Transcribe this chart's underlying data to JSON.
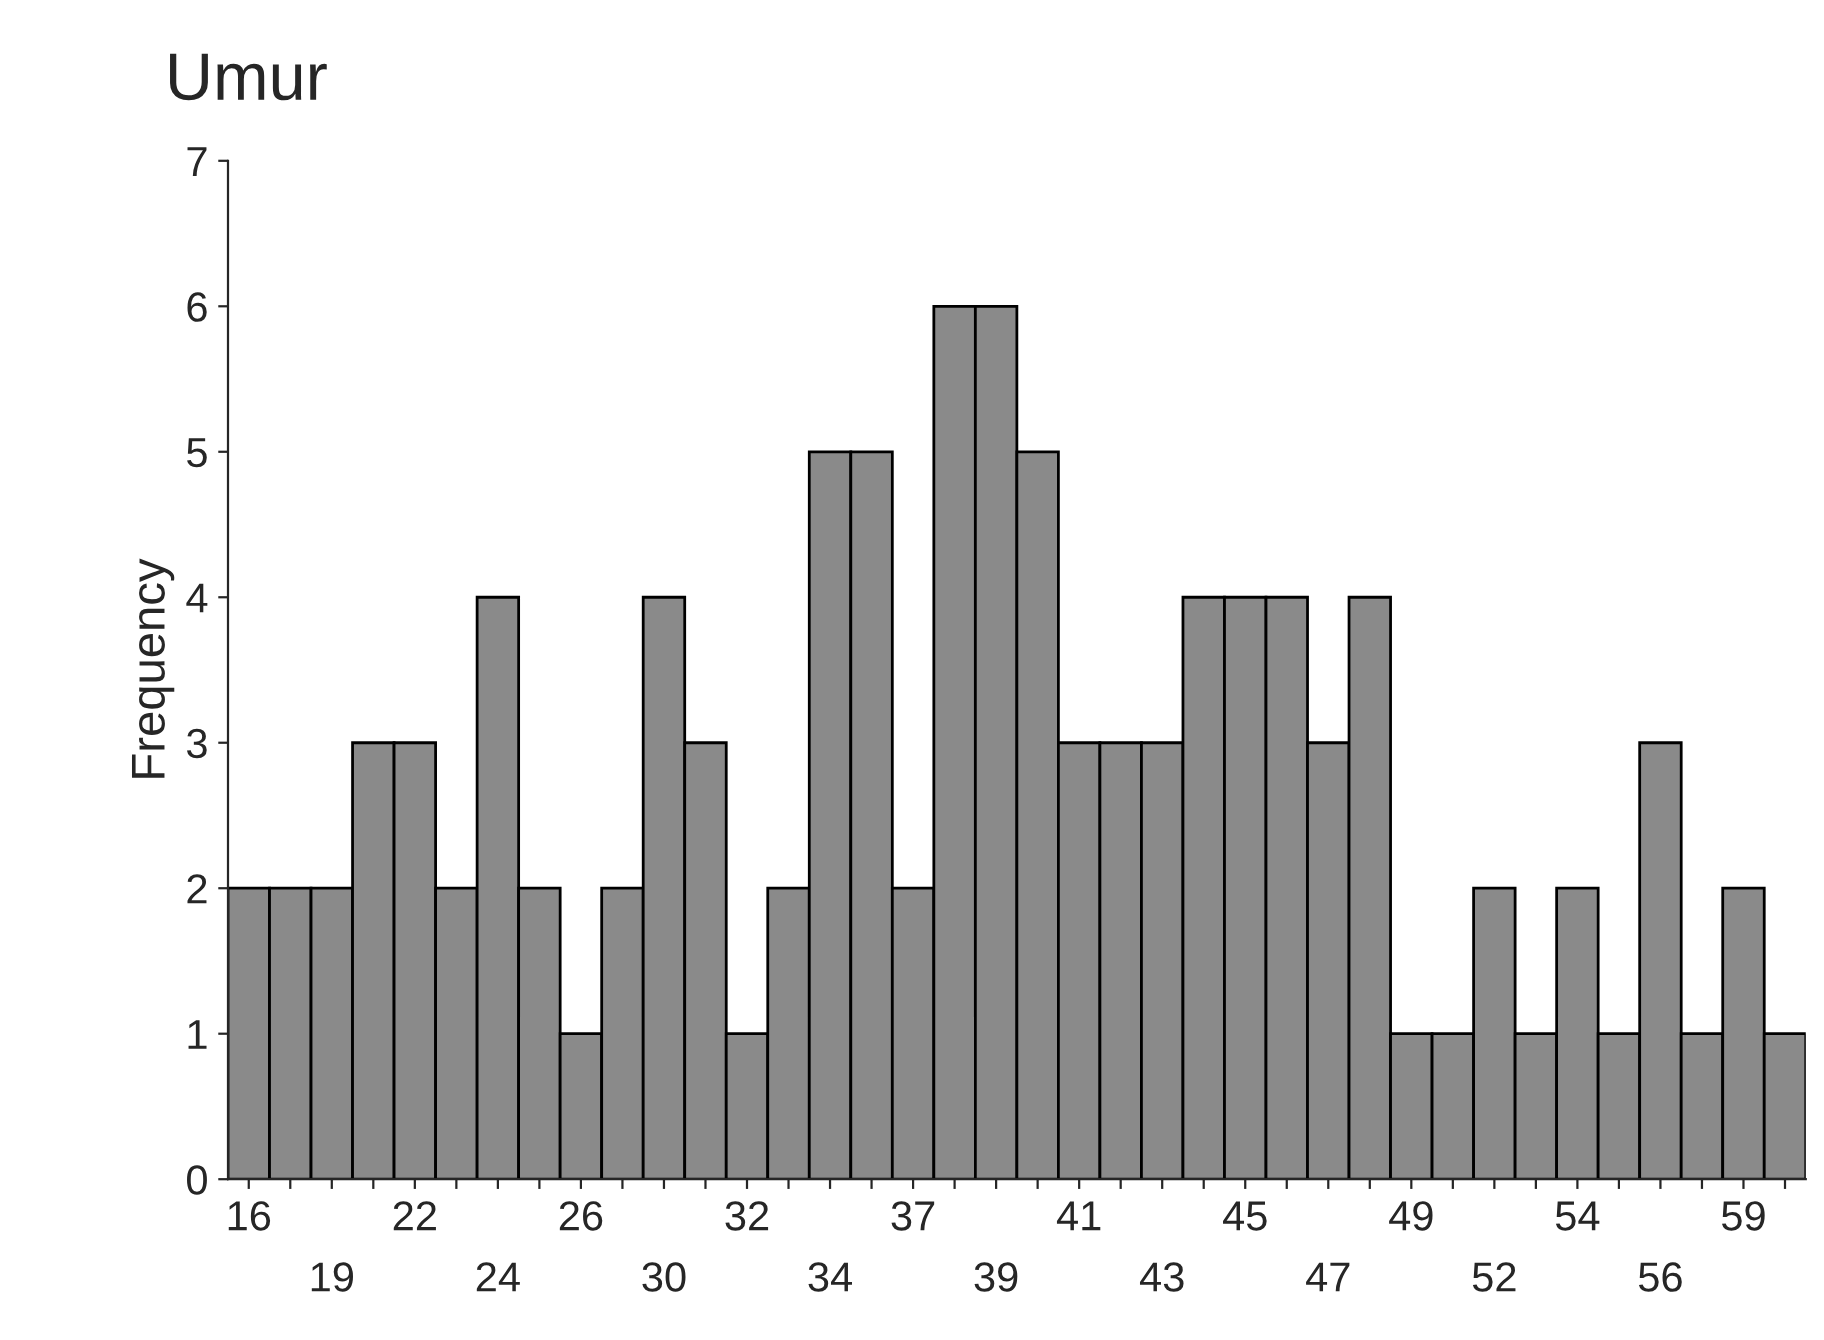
{
  "chart_data": {
    "type": "bar",
    "title": "Umur",
    "ylabel": "Frequency",
    "categories": [
      "16",
      null,
      "19",
      null,
      "22",
      null,
      "24",
      null,
      "26",
      null,
      "30",
      null,
      "32",
      null,
      "34",
      null,
      "37",
      null,
      "39",
      null,
      "41",
      null,
      "43",
      null,
      "45",
      null,
      "47",
      null,
      "49",
      null,
      "52",
      null,
      "54",
      null,
      "56",
      null,
      "59",
      null
    ],
    "values": [
      2,
      2,
      2,
      3,
      3,
      2,
      4,
      2,
      1,
      2,
      4,
      3,
      1,
      2,
      5,
      5,
      2,
      6,
      6,
      5,
      3,
      3,
      3,
      4,
      4,
      4,
      3,
      4,
      1,
      1,
      2,
      1,
      2,
      1,
      3,
      1,
      2,
      1
    ],
    "color": "#8a8a8a",
    "ylim": [
      0,
      7
    ],
    "yticks": [
      0,
      1,
      2,
      3,
      4,
      5,
      6,
      7
    ],
    "grid": false
  }
}
